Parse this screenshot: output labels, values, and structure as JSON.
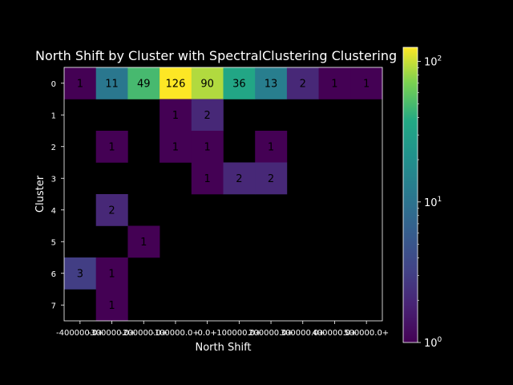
{
  "chart_data": {
    "type": "heatmap",
    "title": "North Shift by Cluster with SpectralClustering Clustering",
    "xlabel": "North Shift",
    "ylabel": "Cluster",
    "x_tick_labels": [
      "-400000.0+",
      "-300000.0+",
      "-200000.0+",
      "-100000.0+",
      "0.0+",
      "100000.0+",
      "200000.0+",
      "300000.0+",
      "400000.0+",
      "500000.0+"
    ],
    "y_tick_labels": [
      "0",
      "1",
      "2",
      "3",
      "4",
      "5",
      "6",
      "7"
    ],
    "values": [
      [
        1,
        11,
        49,
        126,
        90,
        36,
        13,
        2,
        1,
        1
      ],
      [
        null,
        null,
        null,
        1,
        2,
        null,
        null,
        null,
        null,
        null
      ],
      [
        null,
        1,
        null,
        1,
        1,
        null,
        1,
        null,
        null,
        null
      ],
      [
        null,
        null,
        null,
        null,
        1,
        2,
        2,
        null,
        null,
        null
      ],
      [
        null,
        2,
        null,
        null,
        null,
        null,
        null,
        null,
        null,
        null
      ],
      [
        null,
        null,
        1,
        null,
        null,
        null,
        null,
        null,
        null,
        null
      ],
      [
        3,
        1,
        null,
        null,
        null,
        null,
        null,
        null,
        null,
        null
      ],
      [
        null,
        1,
        null,
        null,
        null,
        null,
        null,
        null,
        null,
        null
      ]
    ],
    "colormap": "viridis",
    "color_scale": "log",
    "color_range": [
      1,
      126
    ],
    "colorbar_ticks": [
      {
        "base": "10",
        "exp": "0",
        "value": 1
      },
      {
        "base": "10",
        "exp": "1",
        "value": 10
      },
      {
        "base": "10",
        "exp": "2",
        "value": 100
      }
    ],
    "background": "#000000"
  }
}
